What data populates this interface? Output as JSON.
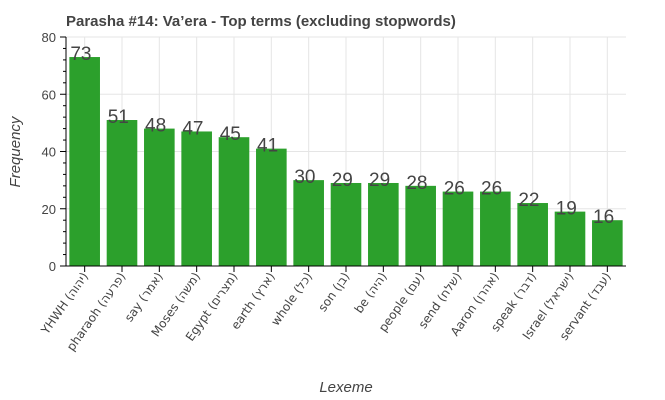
{
  "chart_data": {
    "type": "bar",
    "title": "Parasha #14: Va’era - Top terms (excluding stopwords)",
    "xlabel": "Lexeme",
    "ylabel": "Frequency",
    "categories": [
      "YHWH (יהוה)",
      "pharaoh (פרעה)",
      "say (אמר)",
      "Moses (משה)",
      "Egypt (מצרים)",
      "earth (ארץ)",
      "whole (כל)",
      "son (בן)",
      "be (היה)",
      "people (עם)",
      "send (שלח)",
      "Aaron (אהרן)",
      "speak (דבר)",
      "Israel (ישראל)",
      "servant (עבד)"
    ],
    "values": [
      73,
      51,
      48,
      47,
      45,
      41,
      30,
      29,
      29,
      28,
      26,
      26,
      22,
      19,
      16
    ],
    "ylim": [
      0,
      80
    ],
    "yticks": [
      0,
      20,
      40,
      60,
      80
    ],
    "bar_color": "#2ca02c",
    "grid": true,
    "legend": "none"
  }
}
